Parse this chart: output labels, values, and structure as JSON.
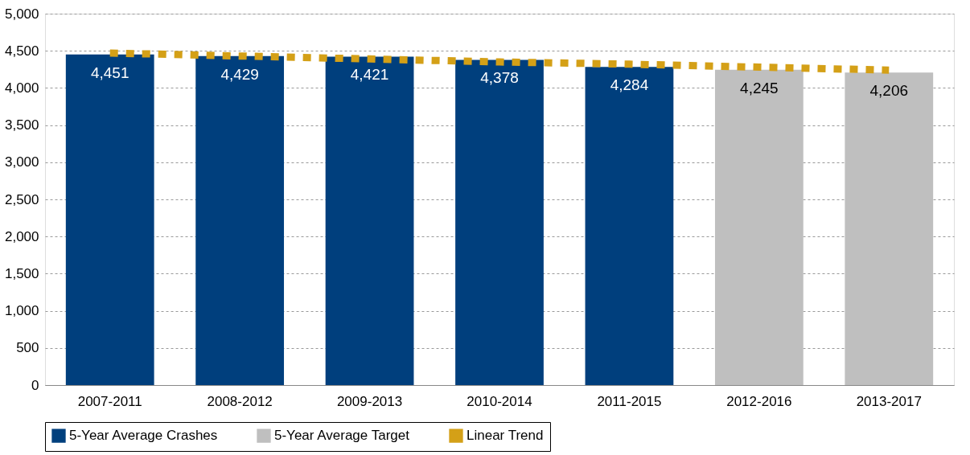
{
  "chart_data": {
    "type": "bar",
    "categories": [
      "2007-2011",
      "2008-2012",
      "2009-2013",
      "2010-2014",
      "2011-2015",
      "2012-2016",
      "2013-2017"
    ],
    "series": [
      {
        "name": "5-Year Average Crashes",
        "color": "#003f7d",
        "values": [
          4451,
          4429,
          4421,
          4378,
          4284,
          null,
          null
        ],
        "value_labels": [
          "4,451",
          "4,429",
          "4,421",
          "4,378",
          "4,284",
          null,
          null
        ]
      },
      {
        "name": "5-Year Average Target",
        "color": "#bfbfbf",
        "values": [
          null,
          null,
          null,
          null,
          null,
          4245,
          4206
        ],
        "value_labels": [
          null,
          null,
          null,
          null,
          null,
          "4,245",
          "4,206"
        ]
      },
      {
        "name": "Linear Trend",
        "type": "line",
        "line_style": "dotted",
        "color": "#d4a017",
        "values": [
          4470,
          4430,
          4390,
          4350,
          4320,
          4280,
          4240
        ]
      }
    ],
    "ylim": [
      0,
      5000
    ],
    "yticks": [
      0,
      500,
      {
        "value": 1000,
        "label": "1,000"
      },
      {
        "value": 1500,
        "label": "1,500"
      },
      {
        "value": 2000,
        "label": "2,000"
      },
      {
        "value": 2500,
        "label": "2,500"
      },
      {
        "value": 3000,
        "label": "3,000"
      },
      {
        "value": 3500,
        "label": "3,500"
      },
      {
        "value": 4000,
        "label": "4,000"
      },
      {
        "value": 4500,
        "label": "4,500"
      },
      {
        "value": 5000,
        "label": "5,000"
      }
    ],
    "grid": "y",
    "legend": "bottom"
  }
}
